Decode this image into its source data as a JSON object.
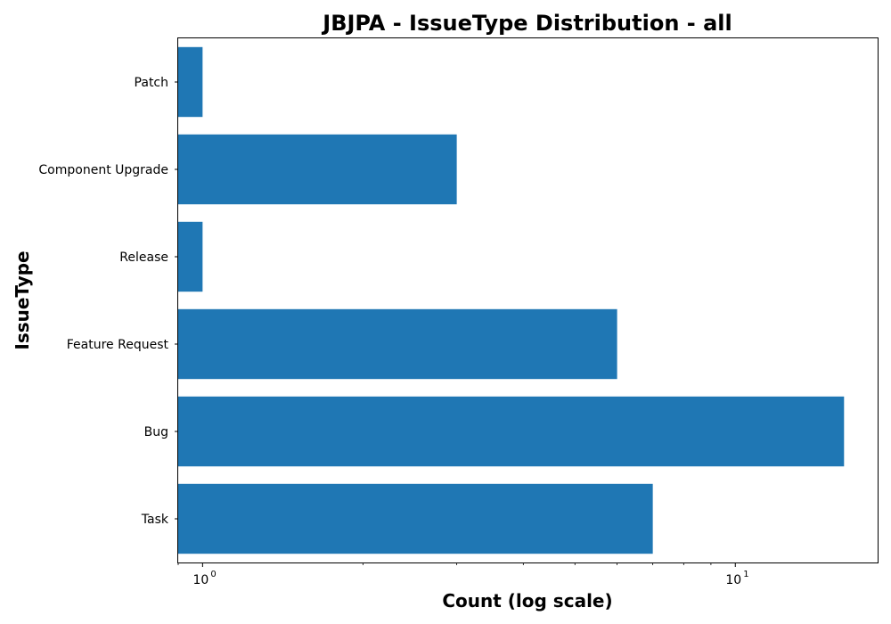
{
  "chart_data": {
    "type": "bar",
    "orientation": "horizontal",
    "title": "JBJPA - IssueType Distribution - all",
    "xlabel": "Count (log scale)",
    "ylabel": "IssueType",
    "x_scale": "log",
    "xlim": [
      0.9,
      18.5
    ],
    "categories": [
      "Task",
      "Bug",
      "Feature Request",
      "Release",
      "Component  Upgrade",
      "Patch"
    ],
    "values": [
      7,
      16,
      6,
      1,
      3,
      1
    ],
    "x_ticks": [
      {
        "value": 1,
        "base": "10",
        "exp": "0"
      },
      {
        "value": 10,
        "base": "10",
        "exp": "1"
      }
    ],
    "bar_color": "#1f77b4",
    "grid": false,
    "legend": "none"
  }
}
